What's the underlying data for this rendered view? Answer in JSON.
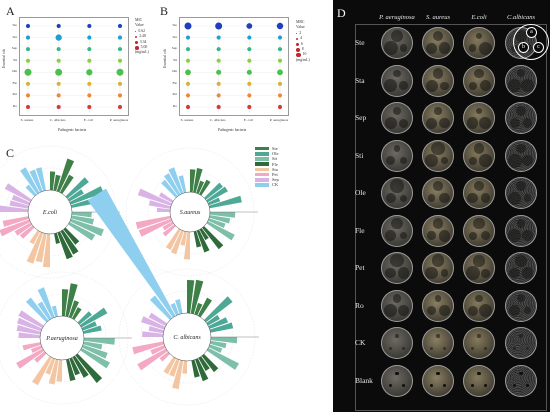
{
  "panel_a": {
    "letter": "A",
    "rows": [
      "Ste",
      "Sta",
      "Sep",
      "Sti",
      "Ole",
      "Fle",
      "Pet",
      "Ro"
    ],
    "columns": [
      "S. aureus",
      "C. albicans",
      "E. coli",
      "P. aeruginosa"
    ],
    "xlabel": "Pathogenic bacteria",
    "ylabel": "Essential oils",
    "legend_title": "MIC",
    "legend_subtitle": "Value",
    "legend_unit": "(mg/mL)",
    "legend_items": [
      "0.62",
      "2.48",
      "3.34",
      "5.00"
    ],
    "color_row": "#c1272d"
  },
  "panel_b": {
    "letter": "B",
    "rows": [
      "Ste",
      "Sta",
      "Sep",
      "Sti",
      "Ole",
      "Fle",
      "Pet",
      "Ro"
    ],
    "columns": [
      "S. aureus",
      "C. albicans",
      "E. coli",
      "P. aeruginosa"
    ],
    "xlabel": "Pathogenic bacteria",
    "ylabel": "Essential oils",
    "legend_title": "MBC",
    "legend_subtitle": "Value",
    "legend_unit": "(mg/mL)",
    "legend_items": [
      "2",
      "4",
      "6",
      "8",
      "10"
    ]
  },
  "panel_c": {
    "letter": "C",
    "charts": [
      {
        "title": "E.coli",
        "hot": ""
      },
      {
        "title": "S.aureus",
        "hot": ""
      },
      {
        "title": "P.aeruginosa",
        "hot": ""
      },
      {
        "title": "C. albicans",
        "hot": "ck"
      }
    ],
    "legend": [
      {
        "label": "Ste",
        "color": "#3f7f48"
      },
      {
        "label": "Ole",
        "color": "#4ea896"
      },
      {
        "label": "Sti",
        "color": "#7dbfa9"
      },
      {
        "label": "Fle",
        "color": "#2f6a3a"
      },
      {
        "label": "Sta",
        "color": "#f4c5a1"
      },
      {
        "label": "Pet",
        "color": "#f3a9c4"
      },
      {
        "label": "Sep",
        "color": "#d9b3e6"
      },
      {
        "label": "CK",
        "color": "#8ecfef"
      }
    ]
  },
  "panel_d": {
    "letter": "D",
    "columns": [
      "P. aeruginosa",
      "S. aureus",
      "E.coli",
      "C.albicans"
    ],
    "rows": [
      "Ste",
      "Sta",
      "Sep",
      "Sti",
      "Ole",
      "Fle",
      "Pet",
      "Ro",
      "CK",
      "Blank"
    ],
    "key": [
      "a",
      "b",
      "c"
    ]
  },
  "chart_data": [
    {
      "type": "scatter",
      "title": "",
      "xlabel": "Pathogenic bacteria",
      "ylabel": "Essential oils",
      "categories": [
        "S. aureus",
        "C. albicans",
        "E. coli",
        "P. aeruginosa"
      ],
      "rows": [
        "Ste",
        "Sta",
        "Sep",
        "Sti",
        "Ole",
        "Fle",
        "Pet",
        "Ro"
      ],
      "series_name": "MIC",
      "legend": [
        "0.62",
        "2.48",
        "3.34",
        "5.00"
      ],
      "values": [
        [
          0.62,
          0.62,
          0.62,
          0.62
        ],
        [
          0.62,
          2.48,
          0.62,
          0.62
        ],
        [
          0.62,
          0.62,
          0.62,
          0.62
        ],
        [
          0.62,
          0.62,
          0.62,
          0.62
        ],
        [
          3.34,
          3.34,
          2.48,
          3.34
        ],
        [
          0.62,
          0.62,
          0.62,
          0.62
        ],
        [
          0.62,
          0.62,
          0.62,
          0.62
        ],
        [
          0.62,
          0.62,
          0.62,
          0.62
        ]
      ]
    },
    {
      "type": "scatter",
      "title": "",
      "xlabel": "Pathogenic bacteria",
      "ylabel": "Essential oils",
      "categories": [
        "S. aureus",
        "C. albicans",
        "E. coli",
        "P. aeruginosa"
      ],
      "rows": [
        "Ste",
        "Sta",
        "Sep",
        "Sti",
        "Ole",
        "Fle",
        "Pet",
        "Ro"
      ],
      "series_name": "MBC",
      "legend": [
        "2",
        "4",
        "6",
        "8",
        "10"
      ],
      "values": [
        [
          10,
          10,
          6,
          8
        ],
        [
          2,
          2,
          2,
          2
        ],
        [
          2,
          2,
          2,
          2
        ],
        [
          2,
          2,
          2,
          2
        ],
        [
          6,
          4,
          4,
          6
        ],
        [
          2,
          2,
          2,
          2
        ],
        [
          2,
          2,
          2,
          2
        ],
        [
          2,
          2,
          2,
          2
        ]
      ]
    }
  ]
}
